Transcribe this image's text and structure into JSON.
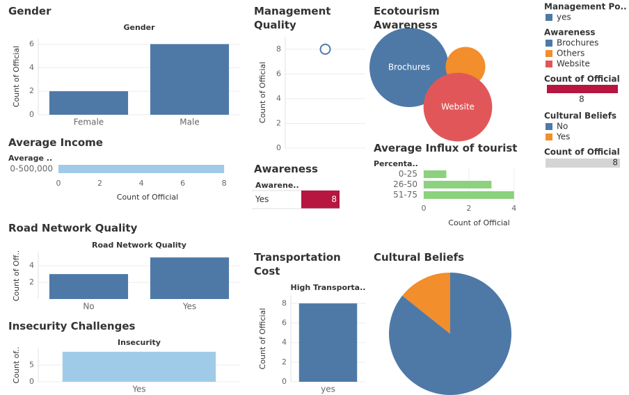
{
  "chart_data": [
    {
      "type": "bar",
      "title": "Gender",
      "subtitle": "Gender",
      "y_label": "Count of Official",
      "categories": [
        "Female",
        "Male"
      ],
      "values": [
        2,
        6
      ],
      "color": "#4e79a7",
      "ylim": [
        0,
        6.5
      ],
      "yticks": [
        0,
        2,
        4,
        6
      ],
      "grid": true
    },
    {
      "type": "hbar",
      "title": "Average Income",
      "y_label": "Average ..",
      "x_label": "Count of Official",
      "categories": [
        "0-500,000"
      ],
      "values": [
        8
      ],
      "color": "#a0cbe8",
      "xlim": [
        0,
        8.6
      ],
      "xticks": [
        0,
        2,
        4,
        6,
        8
      ],
      "grid": false
    },
    {
      "type": "scatter",
      "title": "Management Quality",
      "y_label": "Count of Official",
      "values": [
        8
      ],
      "color": "#4e79a7",
      "ylim": [
        0,
        9
      ],
      "yticks": [
        0,
        2,
        4,
        6,
        8
      ],
      "grid": true
    },
    {
      "type": "bubble",
      "title": "Ecotourism Awareness",
      "categories": [
        "Brochures",
        "Others",
        "Website"
      ],
      "labels": [
        "Brochures",
        null,
        "Website"
      ],
      "values": [
        4,
        1,
        3
      ],
      "colors": [
        "#4e79a7",
        "#f28e2b",
        "#e15759"
      ]
    },
    {
      "type": "table",
      "title": "Awareness",
      "column": "Awarene..",
      "categories": [
        "Yes"
      ],
      "values": [
        8
      ],
      "color": "#b6163f"
    },
    {
      "type": "hbar",
      "title": "Average Influx of tourist",
      "y_label": "Percenta..",
      "x_label": "Count of Official",
      "categories": [
        "0-25",
        "26-50",
        "51-75"
      ],
      "values": [
        1,
        3,
        4
      ],
      "color": "#8cd17d",
      "xlim": [
        0,
        4.9
      ],
      "xticks": [
        0,
        2,
        4
      ],
      "grid": true
    },
    {
      "type": "bar",
      "title": "Road Network Quality",
      "subtitle": "Road Network Quality",
      "y_label": "Count of Off..",
      "categories": [
        "No",
        "Yes"
      ],
      "values": [
        3,
        5
      ],
      "color": "#4e79a7",
      "ylim": [
        0,
        5.6
      ],
      "yticks": [
        2,
        4
      ],
      "grid": true
    },
    {
      "type": "bar",
      "title": "Insecurity Challenges",
      "subtitle": "Insecurity",
      "y_label": "Count of..",
      "categories": [
        "Yes"
      ],
      "values": [
        9
      ],
      "color": "#a0cbe8",
      "ylim": [
        0,
        10
      ],
      "yticks": [
        0,
        5
      ],
      "grid": true
    },
    {
      "type": "bar",
      "title": "Transportation Cost",
      "subtitle": "High Transporta..",
      "y_label": "Count of Official",
      "categories": [
        "yes"
      ],
      "values": [
        8
      ],
      "color": "#4e79a7",
      "ylim": [
        0,
        8.8
      ],
      "yticks": [
        0,
        2,
        4,
        6,
        8
      ],
      "grid": true
    },
    {
      "type": "pie",
      "title": "Cultural Beliefs",
      "categories": [
        "No",
        "Yes"
      ],
      "values": [
        6,
        1
      ],
      "colors": [
        "#4e79a7",
        "#f28e2b"
      ]
    }
  ],
  "legends": [
    {
      "title": "Management Po..",
      "items": [
        {
          "label": "yes",
          "color": "#4e79a7"
        }
      ]
    },
    {
      "title": "Awareness",
      "items": [
        {
          "label": "Brochures",
          "color": "#4e79a7"
        },
        {
          "label": "Others",
          "color": "#f28e2b"
        },
        {
          "label": "Website",
          "color": "#e15759"
        }
      ]
    },
    {
      "title": "Count of Official",
      "value": 8,
      "color": "#b6163f"
    },
    {
      "title": "Cultural Beliefs",
      "items": [
        {
          "label": "No",
          "color": "#4e79a7"
        },
        {
          "label": "Yes",
          "color": "#f28e2b"
        }
      ]
    },
    {
      "title": "Count of Official",
      "value": 8,
      "color": "#d4d4d4"
    }
  ]
}
